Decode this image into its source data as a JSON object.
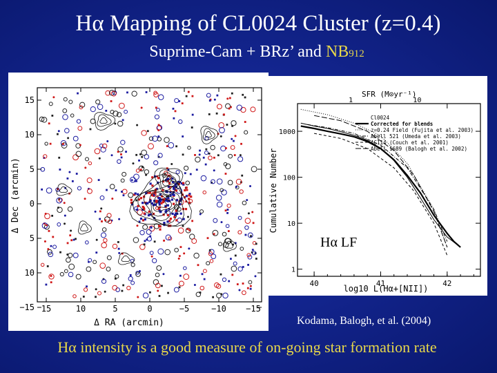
{
  "slide": {
    "title": "Hα Mapping of CL0024 Cluster (z=0.4)",
    "subtitle_prefix": "Suprime-Cam + BRz’ and ",
    "subtitle_nb": "NB",
    "subtitle_nb_sub": "912",
    "citation": "Kodama, Balogh, et al. (2004)",
    "bottom_text": "Hα intensity is a good measure of on-going star formation rate",
    "colors": {
      "background": "#13258f",
      "highlight": "#e8d84a",
      "text": "#ffffff"
    }
  },
  "map_figure": {
    "xlabel": "Δ RA  (arcmin)",
    "ylabel": "Δ Dec  (arcmin)",
    "x_ticks": [
      "15",
      "10",
      "5",
      "0",
      "−5",
      "−10",
      "−15"
    ],
    "y_ticks": [
      "15",
      "10",
      "5",
      "0",
      "5",
      "10",
      "−15"
    ],
    "marker_colors": [
      "#1a1aa0",
      "#d01818",
      "#202020"
    ]
  },
  "chart_data": {
    "type": "line",
    "xlabel": "log10 L(Hα+[NII])",
    "ylabel": "Cumulative Number",
    "top_axis_label": "SFR (M⊙yr⁻¹)",
    "top_ticks": [
      "1",
      "10"
    ],
    "x_ticks": [
      "40",
      "41",
      "42"
    ],
    "y_ticks": [
      "1",
      "10",
      "100",
      "1000"
    ],
    "xlim": [
      39.75,
      42.5
    ],
    "ylim": [
      0.7,
      4000
    ],
    "log_y": true,
    "annotation": "Hα LF",
    "legend_title": "Cl0024",
    "series": [
      {
        "name": "Corrected for blends",
        "style": "bold",
        "x": [
          39.8,
          40.0,
          40.2,
          40.4,
          40.6,
          40.8,
          41.0,
          41.2,
          41.4,
          41.6,
          41.8,
          42.0,
          42.1,
          42.2
        ],
        "y": [
          1300,
          1150,
          1000,
          880,
          760,
          600,
          420,
          240,
          110,
          45,
          15,
          6,
          4,
          3
        ]
      },
      {
        "name": "",
        "style": "solid",
        "x": [
          39.8,
          40.0,
          40.2,
          40.4,
          40.6,
          40.8,
          41.0,
          41.2,
          41.4,
          41.6,
          41.8,
          42.0,
          42.2
        ],
        "y": [
          1500,
          1300,
          1150,
          980,
          820,
          640,
          430,
          230,
          100,
          35,
          12,
          5,
          3
        ]
      },
      {
        "name": "z=0.24 Field (Fujita et al. 2003)",
        "style": "dot",
        "x": [
          39.8,
          40.2,
          40.6,
          41.0,
          41.4,
          41.8,
          42.0
        ],
        "y": [
          3000,
          2300,
          1500,
          800,
          200,
          20,
          3
        ]
      },
      {
        "name": "Abell 521 (Umeda et al. 2003)",
        "style": "dashdot",
        "x": [
          39.9,
          40.2,
          40.6,
          41.0,
          41.4,
          41.8,
          42.0
        ],
        "y": [
          1400,
          1200,
          900,
          500,
          160,
          20,
          4
        ]
      },
      {
        "name": "AC114 (Couch et al. 2001)",
        "style": "dash",
        "x": [
          40.0,
          40.4,
          40.8,
          41.2,
          41.5,
          41.8,
          42.0
        ],
        "y": [
          900,
          700,
          420,
          160,
          50,
          10,
          2
        ]
      },
      {
        "name": "Abell 1689 (Balogh et al. 2002)",
        "style": "longdash",
        "x": [
          40.0,
          40.4,
          40.8,
          41.2,
          41.5,
          41.8,
          42.0
        ],
        "y": [
          2200,
          1700,
          1000,
          380,
          110,
          18,
          3
        ]
      }
    ]
  }
}
